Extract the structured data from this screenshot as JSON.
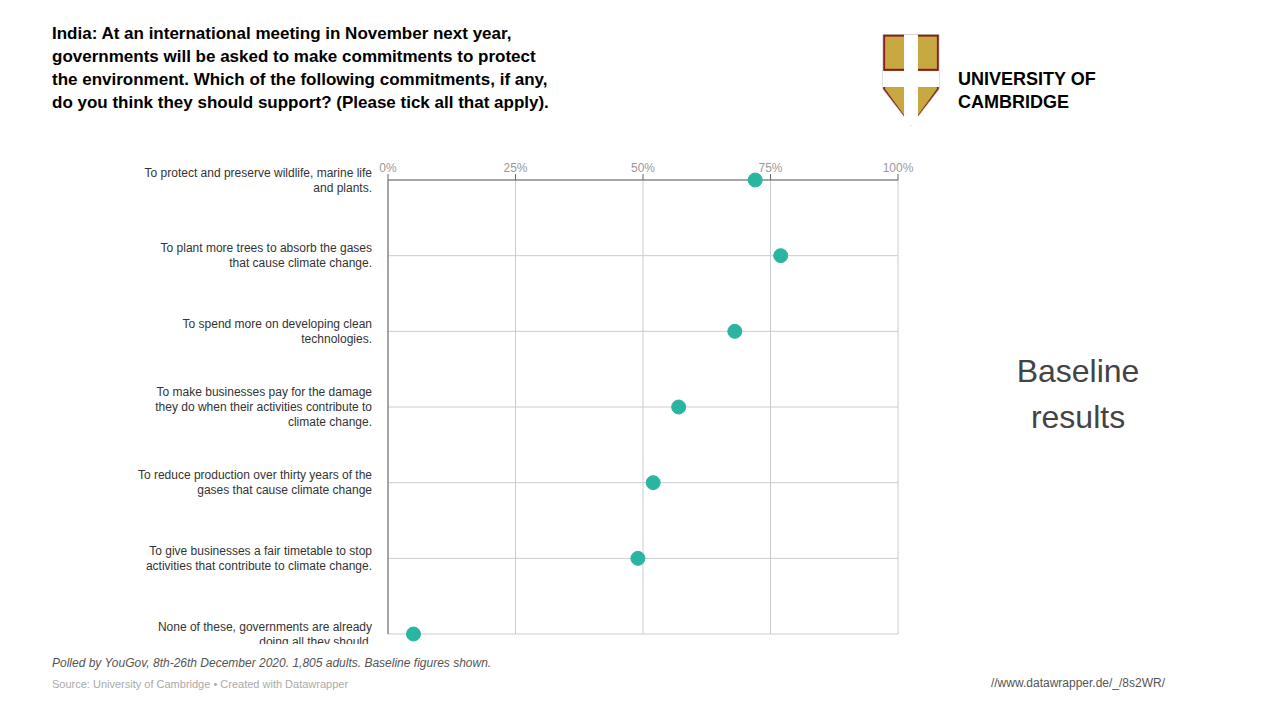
{
  "chart_data": {
    "type": "scatter",
    "title": "India: At an international meeting in November next year,\ngovernments will be asked to make commitments to protect\nthe environment. Which of the following commitments, if any,\ndo you think they should support? (Please tick all that apply).",
    "categories": [
      "To protect and preserve wildlife, marine life\nand plants.",
      "To plant more trees to absorb the gases\nthat cause climate change.",
      "To spend more on developing clean\ntechnologies.",
      "To make businesses pay for the damage\nthey do when their activities contribute to\nclimate change.",
      "To reduce production over thirty years of the\ngases that cause climate change",
      "To give businesses a fair timetable to stop\nactivities that contribute to climate change.",
      "None of these, governments are already\ndoing all they should."
    ],
    "values": [
      72,
      77,
      68,
      57,
      52,
      49,
      5
    ],
    "color": "#2ab5a0",
    "xlim": [
      0,
      100
    ],
    "xticks": [
      {
        "value": 0,
        "label": "0%"
      },
      {
        "value": 25,
        "label": "25%"
      },
      {
        "value": 50,
        "label": "50%"
      },
      {
        "value": 75,
        "label": "75%"
      },
      {
        "value": 100,
        "label": "100%"
      }
    ],
    "grid": true,
    "annotations": [
      "Polled by YouGov, 8th-26th December 2020. 1,805 adults. Baseline figures shown.",
      "Source: University of Cambridge • Created with Datawrapper",
      "Baseline\nresults",
      "//www.datawrapper.de/_/8s2WR/",
      "UNIVERSITY OF\nCAMBRIDGE"
    ]
  }
}
